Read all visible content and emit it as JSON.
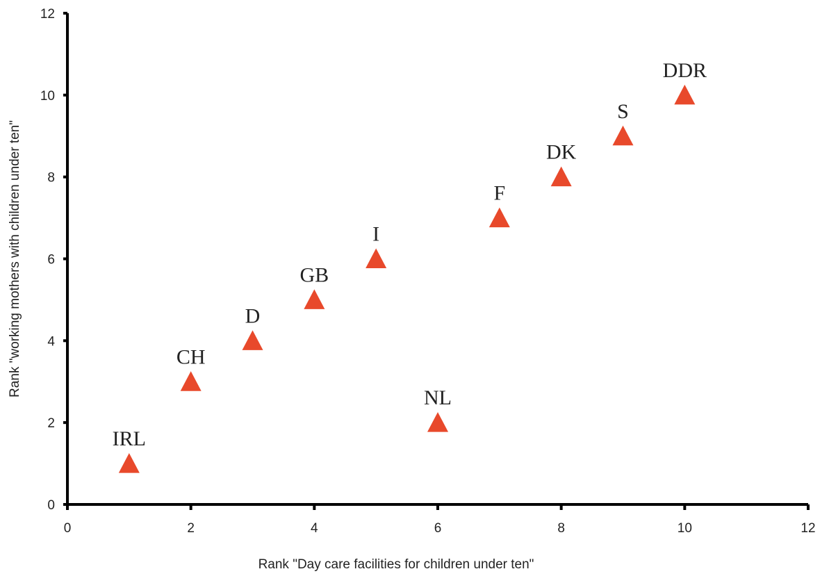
{
  "chart_data": {
    "type": "scatter",
    "xlabel": "Rank \"Day care facilities for children under ten\"",
    "ylabel": "Rank \"working mothers with children under ten\"",
    "xlim": [
      0,
      12
    ],
    "ylim": [
      0,
      12
    ],
    "xticks": [
      "0",
      "2",
      "4",
      "6",
      "8",
      "10",
      "12"
    ],
    "yticks": [
      "0",
      "2",
      "4",
      "6",
      "8",
      "10",
      "12"
    ],
    "grid": false,
    "marker": "triangle",
    "color": "#e8492b",
    "points": [
      {
        "label": "IRL",
        "x": 1,
        "y": 1
      },
      {
        "label": "CH",
        "x": 2,
        "y": 3
      },
      {
        "label": "D",
        "x": 3,
        "y": 4
      },
      {
        "label": "GB",
        "x": 4,
        "y": 5
      },
      {
        "label": "I",
        "x": 5,
        "y": 6
      },
      {
        "label": "NL",
        "x": 6,
        "y": 2
      },
      {
        "label": "F",
        "x": 7,
        "y": 7
      },
      {
        "label": "DK",
        "x": 8,
        "y": 8
      },
      {
        "label": "S",
        "x": 9,
        "y": 9
      },
      {
        "label": "DDR",
        "x": 10,
        "y": 10
      }
    ]
  }
}
